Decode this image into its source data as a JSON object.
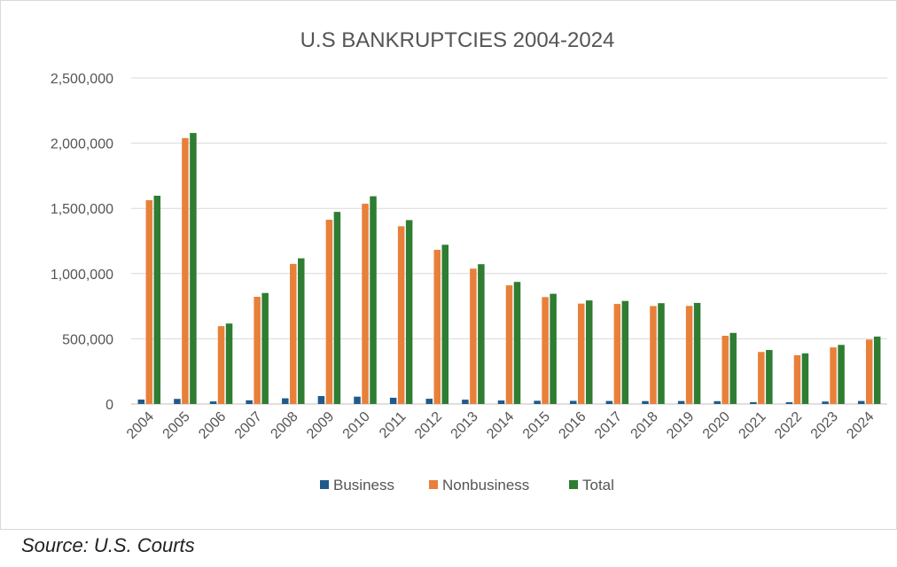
{
  "chart_data": {
    "type": "bar",
    "title": "U.S BANKRUPTCIES 2004-2024",
    "xlabel": "",
    "ylabel": "",
    "categories": [
      "2004",
      "2005",
      "2006",
      "2007",
      "2008",
      "2009",
      "2010",
      "2011",
      "2012",
      "2013",
      "2014",
      "2015",
      "2016",
      "2017",
      "2018",
      "2019",
      "2020",
      "2021",
      "2022",
      "2023",
      "2024"
    ],
    "series": [
      {
        "name": "Business",
        "color": "#1f5a8a",
        "values": [
          34000,
          39000,
          19700,
          28300,
          43500,
          60800,
          56300,
          47800,
          40100,
          33200,
          26900,
          24700,
          24100,
          23200,
          22200,
          22800,
          21700,
          14300,
          13500,
          18900,
          23100
        ]
      },
      {
        "name": "Nonbusiness",
        "color": "#e8803a",
        "values": [
          1563000,
          2039000,
          597000,
          822000,
          1074000,
          1413000,
          1536000,
          1363000,
          1182000,
          1038000,
          910000,
          820000,
          770000,
          767000,
          751000,
          752000,
          523000,
          399000,
          374000,
          434000,
          494000
        ]
      },
      {
        "name": "Total",
        "color": "#2e7d32",
        "values": [
          1597000,
          2078000,
          617000,
          851000,
          1117000,
          1473000,
          1593000,
          1410000,
          1221000,
          1072000,
          936000,
          845000,
          794000,
          790000,
          773000,
          775000,
          545000,
          414000,
          388000,
          453000,
          517000
        ]
      }
    ],
    "ylim": [
      0,
      2500000
    ],
    "yticks": [
      "0",
      "500,000",
      "1,000,000",
      "1,500,000",
      "2,000,000",
      "2,500,000"
    ],
    "grid": true,
    "legend_position": "bottom"
  },
  "source_note": "Source: U.S. Courts"
}
